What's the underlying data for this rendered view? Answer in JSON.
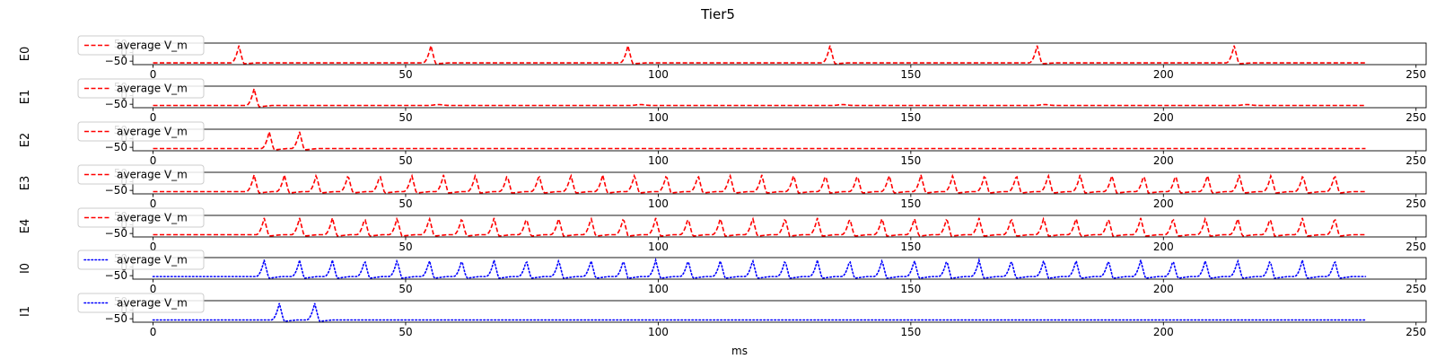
{
  "chart_data": {
    "type": "line",
    "title": "Tier5",
    "xlabel": "ms",
    "xlim": [
      -4,
      252
    ],
    "ylim": [
      -70,
      55
    ],
    "x_ticks": [
      0,
      50,
      100,
      150,
      200,
      250
    ],
    "y_ticks": [
      50,
      0,
      -50
    ],
    "x_tick_labels": [
      "0",
      "50",
      "100",
      "150",
      "200",
      "250"
    ],
    "y_tick_labels": [
      "50",
      "0",
      "−50"
    ],
    "grid": false,
    "legend_placement": "upper-left",
    "panels": [
      {
        "name": "E0",
        "ylabel": "E0",
        "legend": "average V_m",
        "color": "#ff0000",
        "style": "dashed",
        "rest": -60,
        "t_end": 240,
        "spikes": [
          17,
          55,
          94,
          134,
          175,
          214
        ],
        "spike_peak": 40
      },
      {
        "name": "E1",
        "ylabel": "E1",
        "legend": "average V_m",
        "color": "#ff0000",
        "style": "dashed",
        "rest": -57,
        "t_end": 240,
        "spikes": [
          20
        ],
        "spike_peak": 40,
        "bumps": [
          56,
          96,
          136,
          176,
          216
        ]
      },
      {
        "name": "E2",
        "ylabel": "E2",
        "legend": "average V_m",
        "color": "#ff0000",
        "style": "dashed",
        "rest": -57,
        "t_end": 240,
        "spikes": [
          23,
          29
        ],
        "spike_peak": 40
      },
      {
        "name": "E3",
        "ylabel": "E3",
        "legend": "average V_m",
        "color": "#ff0000",
        "style": "dashed",
        "rest": -57,
        "t_end": 240,
        "spikes": [
          20,
          26,
          32.3,
          38.6,
          44.9,
          51.2,
          57.5,
          63.8,
          70.1,
          76.4,
          82.7,
          89,
          95.3,
          101.6,
          107.9,
          114.2,
          120.5,
          126.8,
          133.1,
          139.4,
          145.7,
          152,
          158.3,
          164.6,
          170.9,
          177.2,
          183.5,
          189.8,
          196.1,
          202.4,
          208.7,
          215,
          221.3,
          227.6,
          233.9
        ],
        "spike_peak": 40
      },
      {
        "name": "E4",
        "ylabel": "E4",
        "legend": "average V_m",
        "color": "#ff0000",
        "style": "dashed",
        "rest": -57,
        "t_end": 240,
        "spikes": [
          22,
          29,
          35.5,
          41.9,
          48.3,
          54.7,
          61.1,
          67.5,
          73.9,
          80.3,
          86.7,
          93.1,
          99.5,
          105.9,
          112.3,
          118.7,
          125.1,
          131.5,
          137.9,
          144.3,
          150.7,
          157.1,
          163.5,
          169.9,
          176.3,
          182.7,
          189.1,
          195.5,
          201.9,
          208.3,
          214.7,
          221.1,
          227.5,
          233.9
        ],
        "spike_peak": 40
      },
      {
        "name": "I0",
        "ylabel": "I0",
        "legend": "average V_m",
        "color": "#0000ff",
        "style": "dotted",
        "rest": -55,
        "t_end": 240,
        "spikes": [
          22,
          29,
          35.5,
          41.9,
          48.3,
          54.7,
          61.1,
          67.5,
          73.9,
          80.3,
          86.7,
          93.1,
          99.5,
          105.9,
          112.3,
          118.7,
          125.1,
          131.5,
          137.9,
          144.3,
          150.7,
          157.1,
          163.5,
          169.9,
          176.3,
          182.7,
          189.1,
          195.5,
          201.9,
          208.3,
          214.7,
          221.1,
          227.5,
          233.9
        ],
        "spike_peak": 40
      },
      {
        "name": "I1",
        "ylabel": "I1",
        "legend": "average V_m",
        "color": "#0000ff",
        "style": "dotted",
        "rest": -57,
        "t_end": 240,
        "spikes": [
          25,
          32
        ],
        "spike_peak": 40
      }
    ]
  }
}
